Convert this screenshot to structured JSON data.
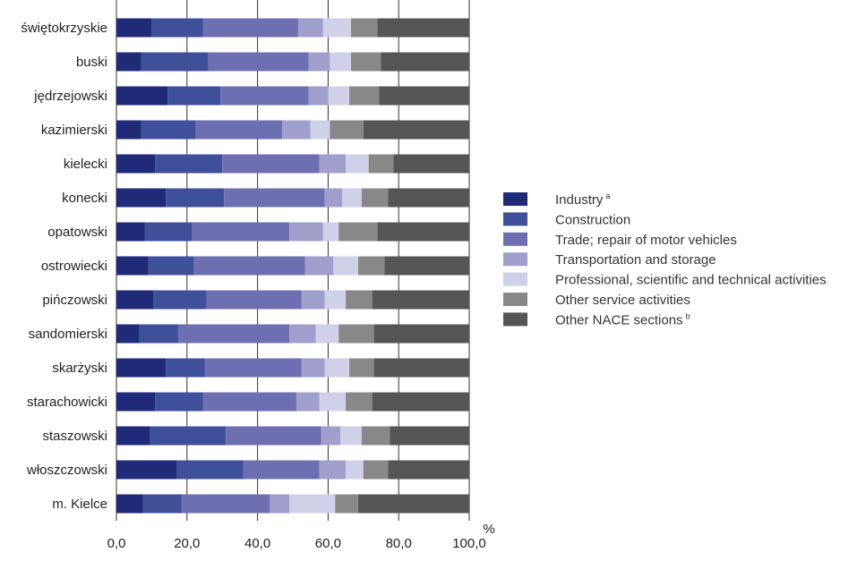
{
  "chart_data": {
    "type": "bar",
    "orientation": "horizontal",
    "stacked": true,
    "xlabel": "%",
    "xlim": [
      0,
      100
    ],
    "xticks": [
      "0,0",
      "20,0",
      "40,0",
      "60,0",
      "80,0",
      "100,0"
    ],
    "grid": true,
    "legend_position": "right",
    "categories": [
      "świętokrzyskie",
      "buski",
      "jędrzejowski",
      "kazimierski",
      "kielecki",
      "konecki",
      "opatowski",
      "ostrowiecki",
      "pińczowski",
      "sandomierski",
      "skarżyski",
      "starachowicki",
      "staszowski",
      "włoszczowski",
      "m. Kielce"
    ],
    "series": [
      {
        "name": "Industry",
        "sup": "a",
        "color": "#1f2a78",
        "values": [
          10,
          7,
          14.5,
          7,
          11,
          14,
          8,
          9,
          10.5,
          6.5,
          14,
          11,
          9.5,
          17,
          7.5
        ]
      },
      {
        "name": "Construction",
        "sup": "",
        "color": "#3f4f9a",
        "values": [
          14.5,
          19,
          15,
          15.5,
          19,
          16.5,
          13.5,
          13,
          15,
          11,
          11,
          13.5,
          21.5,
          19,
          11
        ]
      },
      {
        "name": "Trade; repair of motor vehicles",
        "sup": "",
        "color": "#6d6fb0",
        "values": [
          27,
          28.5,
          25,
          24.5,
          27.5,
          28.5,
          27.5,
          31.5,
          27,
          31.5,
          27.5,
          26.5,
          27,
          21.5,
          25
        ]
      },
      {
        "name": "Transportation and storage",
        "sup": "",
        "color": "#a09fcc",
        "values": [
          7,
          6,
          5.5,
          8,
          7.5,
          5,
          9.5,
          8,
          6.5,
          7.5,
          6.5,
          6.5,
          5.5,
          7.5,
          5.5
        ]
      },
      {
        "name": "Professional, scientific and technical activities",
        "sup": "",
        "color": "#d0d0e8",
        "values": [
          8,
          6,
          6,
          5.5,
          6.5,
          5.5,
          4.5,
          7,
          6,
          6.5,
          7,
          7.5,
          6,
          5,
          13
        ]
      },
      {
        "name": "Other service activities",
        "sup": "",
        "color": "#888888",
        "values": [
          7.5,
          8.5,
          8.5,
          9.5,
          7,
          7.5,
          11,
          7.5,
          7.5,
          10,
          7,
          7.5,
          8,
          7,
          6.5
        ]
      },
      {
        "name": "Other NACE sections",
        "sup": "b",
        "color": "#555555",
        "values": [
          26,
          25,
          25.5,
          30,
          21.5,
          23,
          26,
          24,
          27.5,
          27,
          27,
          27.5,
          22.5,
          23,
          31.5
        ]
      }
    ]
  }
}
